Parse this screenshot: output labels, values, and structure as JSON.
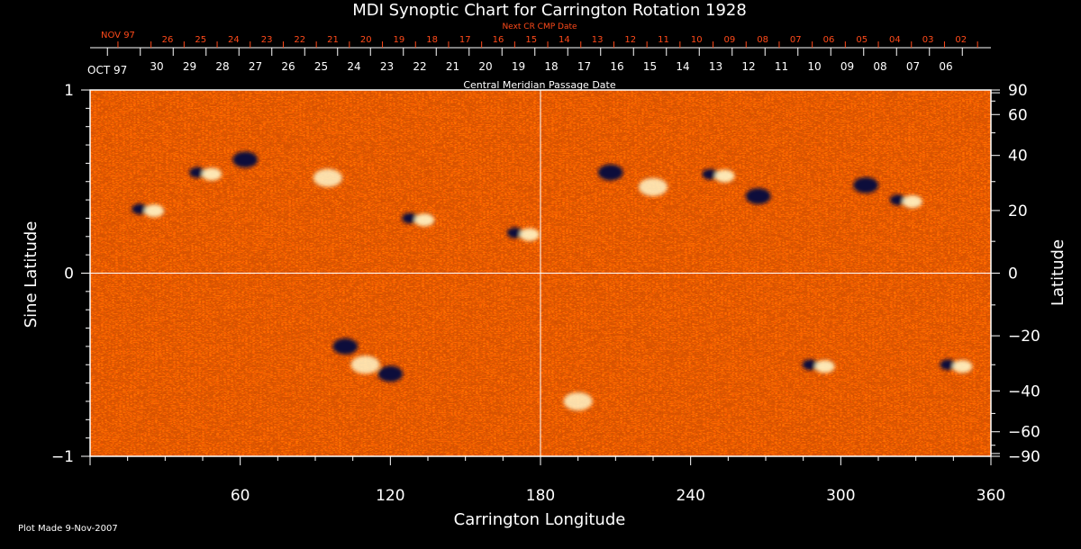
{
  "chart_data": {
    "type": "heatmap",
    "title": "MDI Synoptic Chart for Carrington Rotation 1928",
    "xlabel": "Carrington Longitude",
    "ylabel_left": "Sine Latitude",
    "ylabel_right": "Latitude",
    "xlim": [
      0,
      360
    ],
    "ylim": [
      -1,
      1
    ],
    "x_ticks": [
      60,
      120,
      180,
      240,
      300,
      360
    ],
    "y_ticks_left": [
      {
        "value": 1,
        "label": "1"
      },
      {
        "value": 0,
        "label": "0"
      },
      {
        "value": -1,
        "label": "−1"
      }
    ],
    "y_ticks_right": [
      {
        "lat": 90,
        "label": "90"
      },
      {
        "lat": 60,
        "label": "60"
      },
      {
        "lat": 40,
        "label": "40"
      },
      {
        "lat": 20,
        "label": "20"
      },
      {
        "lat": 0,
        "label": "0"
      },
      {
        "lat": -20,
        "label": "−20"
      },
      {
        "lat": -40,
        "label": "−40"
      },
      {
        "lat": -60,
        "label": "−60"
      },
      {
        "lat": -90,
        "label": "−90"
      }
    ],
    "grid_lines": {
      "longitude": [
        180
      ],
      "sine_latitude": [
        0
      ]
    },
    "next_cr_axis": {
      "title": "Next CR CMP Date",
      "month_label": "NOV 97",
      "days": [
        "26",
        "25",
        "24",
        "23",
        "22",
        "21",
        "20",
        "19",
        "18",
        "17",
        "16",
        "15",
        "14",
        "13",
        "12",
        "11",
        "10",
        "09",
        "08",
        "07",
        "06",
        "05",
        "04",
        "03",
        "02"
      ],
      "color": "#ff4a1a"
    },
    "cmp_axis": {
      "title": "Central Meridian Passage Date",
      "month_label": "OCT 97",
      "days": [
        "30",
        "29",
        "28",
        "27",
        "26",
        "25",
        "24",
        "23",
        "22",
        "21",
        "20",
        "19",
        "18",
        "17",
        "16",
        "15",
        "14",
        "13",
        "12",
        "11",
        "10",
        "09",
        "08",
        "07",
        "06"
      ]
    },
    "colormap": {
      "background": "#ff5a00",
      "positive": "#fff6c8",
      "negative": "#10103a",
      "neutral": "#e02800"
    },
    "active_regions": [
      {
        "lon": 22,
        "sinlat": 0.35,
        "polarity": "bipole"
      },
      {
        "lon": 45,
        "sinlat": 0.55,
        "polarity": "bipole"
      },
      {
        "lon": 62,
        "sinlat": 0.62,
        "polarity": "negative"
      },
      {
        "lon": 95,
        "sinlat": 0.52,
        "polarity": "positive"
      },
      {
        "lon": 130,
        "sinlat": 0.3,
        "polarity": "bipole"
      },
      {
        "lon": 172,
        "sinlat": 0.22,
        "polarity": "bipole"
      },
      {
        "lon": 208,
        "sinlat": 0.55,
        "polarity": "negative"
      },
      {
        "lon": 225,
        "sinlat": 0.47,
        "polarity": "positive"
      },
      {
        "lon": 250,
        "sinlat": 0.54,
        "polarity": "bipole"
      },
      {
        "lon": 267,
        "sinlat": 0.42,
        "polarity": "negative"
      },
      {
        "lon": 310,
        "sinlat": 0.48,
        "polarity": "negative"
      },
      {
        "lon": 325,
        "sinlat": 0.4,
        "polarity": "bipole"
      },
      {
        "lon": 102,
        "sinlat": -0.4,
        "polarity": "negative"
      },
      {
        "lon": 120,
        "sinlat": -0.55,
        "polarity": "negative"
      },
      {
        "lon": 110,
        "sinlat": -0.5,
        "polarity": "positive"
      },
      {
        "lon": 290,
        "sinlat": -0.5,
        "polarity": "bipole"
      },
      {
        "lon": 345,
        "sinlat": -0.5,
        "polarity": "bipole"
      },
      {
        "lon": 195,
        "sinlat": -0.7,
        "polarity": "positive"
      }
    ]
  },
  "footer": {
    "plot_made": "Plot Made  9-Nov-2007"
  }
}
